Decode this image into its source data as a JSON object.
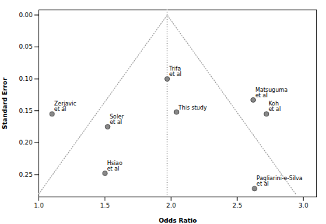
{
  "chart_data": {
    "type": "scatter",
    "xlabel": "Odds Ratio",
    "ylabel": "Standard Error",
    "points": {
      "labels": [
        "Zerjavic\net al",
        "Soler\net al",
        "Hsiao\net al",
        "Trifa\net al",
        "This study",
        "Matsuguma\net al",
        "Koh\net al",
        "Pagliarini-e-Silva\net al"
      ],
      "x": [
        1.1,
        1.52,
        1.5,
        1.97,
        2.04,
        2.62,
        2.72,
        2.63
      ],
      "y": [
        0.155,
        0.175,
        0.248,
        0.1,
        0.152,
        0.133,
        0.155,
        0.272
      ]
    },
    "color": "#888888",
    "marker": "circle",
    "funnel": {
      "x": [
        1.0,
        1.97,
        2.94
      ],
      "y": [
        0.28,
        0.0,
        0.28
      ],
      "color": "#999999",
      "line_style": "dotted"
    },
    "center_line": {
      "x": 1.97,
      "color": "#999999",
      "line_style": "dotted"
    },
    "xlim": [
      1.0,
      3.1
    ],
    "ylim": [
      0.285,
      -0.008
    ],
    "xticks": [
      {
        "value": 1.0,
        "label": "1.0"
      },
      {
        "value": 1.5,
        "label": "1.5"
      },
      {
        "value": 2.0,
        "label": "2.0"
      },
      {
        "value": 2.5,
        "label": "2.5"
      },
      {
        "value": 3.0,
        "label": "3.0"
      }
    ],
    "yticks": [
      {
        "value": 0.0,
        "label": "0.00"
      },
      {
        "value": 0.05,
        "label": "0.05"
      },
      {
        "value": 0.1,
        "label": "0.10"
      },
      {
        "value": 0.15,
        "label": "0.15"
      },
      {
        "value": 0.2,
        "label": "0.20"
      },
      {
        "value": 0.25,
        "label": "0.25"
      }
    ],
    "grid": false
  }
}
